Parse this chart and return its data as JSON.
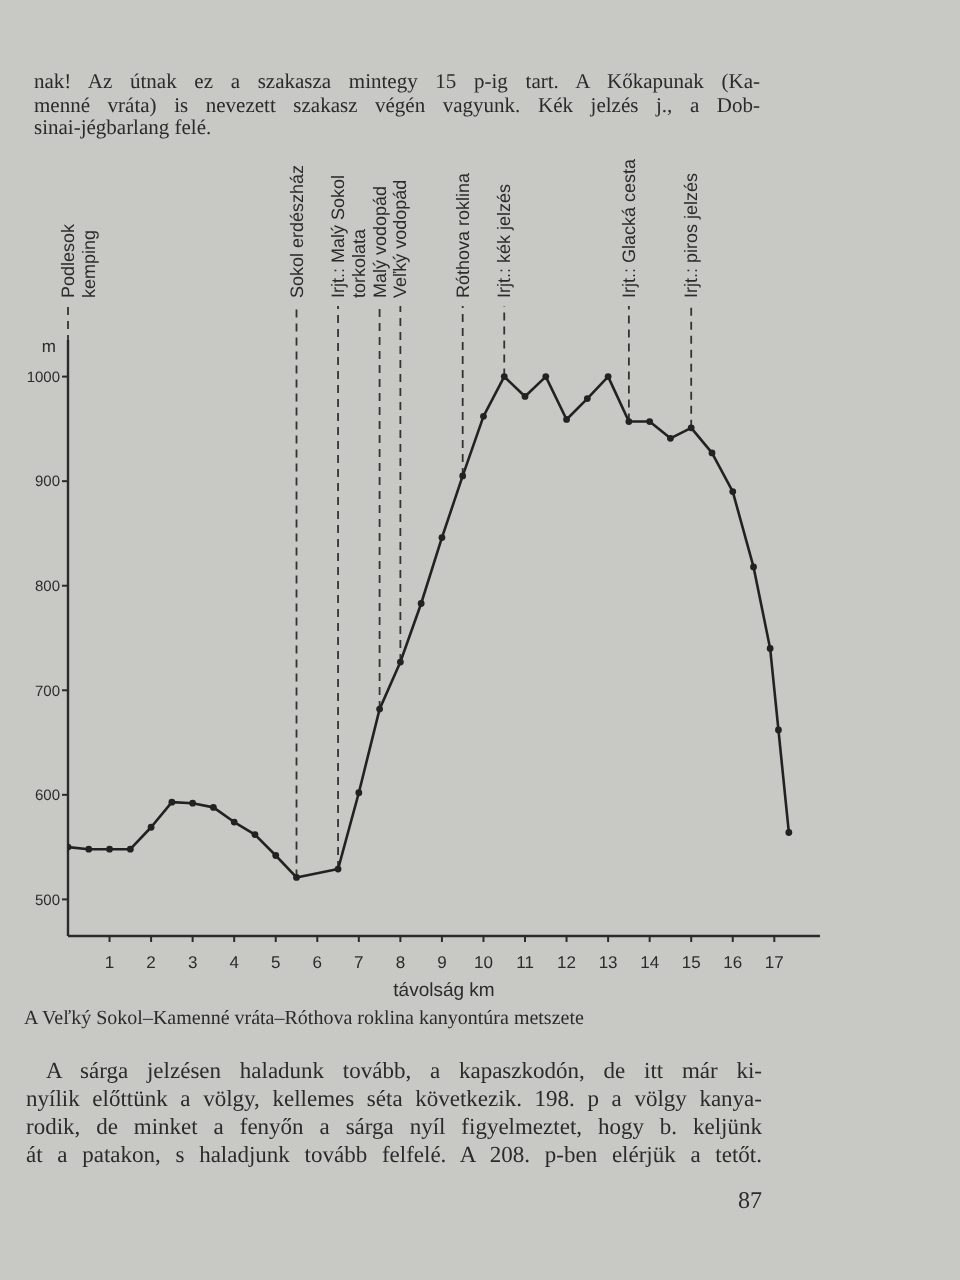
{
  "chart_data": {
    "type": "line",
    "xlabel": "távolság km",
    "ylabel": "m",
    "x": [
      0,
      0.5,
      1,
      1.5,
      2,
      2.5,
      3,
      3.5,
      4,
      4.5,
      5,
      5.5,
      6.5,
      7,
      7.5,
      8,
      8.5,
      9,
      9.5,
      10,
      10.5,
      11,
      11.5,
      12,
      12.5,
      13,
      13.5,
      14,
      14.5,
      15,
      15.5,
      16,
      16.5,
      16.9,
      17.1,
      17.35
    ],
    "values": [
      550,
      548,
      548,
      548,
      569,
      593,
      592,
      588,
      574,
      562,
      542,
      521,
      529,
      602,
      682,
      727,
      783,
      846,
      905,
      962,
      1000,
      981,
      1000,
      959,
      979,
      1000,
      957,
      957,
      941,
      951,
      927,
      890,
      818,
      740,
      662,
      564
    ],
    "color": "#222222",
    "marker": "circle",
    "line_style": "solid",
    "xlim": [
      0,
      18.1
    ],
    "xticks": [
      1,
      2,
      3,
      4,
      5,
      6,
      7,
      8,
      9,
      10,
      11,
      12,
      13,
      14,
      15,
      16,
      17
    ],
    "ylim": [
      465,
      1035
    ],
    "yticks": [
      500,
      600,
      700,
      800,
      900,
      1000
    ],
    "ref_lines": [
      {
        "axis": "x",
        "value": 0,
        "label": "Podlesok\nkemping",
        "color": "#333333",
        "line_style": "dashed"
      },
      {
        "axis": "x",
        "value": 5.5,
        "label": "Sokol erdészház",
        "color": "#333333",
        "line_style": "dashed"
      },
      {
        "axis": "x",
        "value": 6.5,
        "label": "Irjt.: Malý Sokol\ntorkolata",
        "color": "#333333",
        "line_style": "dashed"
      },
      {
        "axis": "x",
        "value": 7.5,
        "label": "Malý vodopád",
        "color": "#333333",
        "line_style": "dashed"
      },
      {
        "axis": "x",
        "value": 8,
        "label": "Veľký vodopád",
        "color": "#333333",
        "line_style": "dashed"
      },
      {
        "axis": "x",
        "value": 9.5,
        "label": "Róthova roklina",
        "color": "#333333",
        "line_style": "dashed"
      },
      {
        "axis": "x",
        "value": 10.5,
        "label": "Irjt.: kék jelzés",
        "color": "#333333",
        "line_style": "dashed"
      },
      {
        "axis": "x",
        "value": 13.5,
        "label": "Irjt.: Glacká cesta",
        "color": "#333333",
        "line_style": "dashed"
      },
      {
        "axis": "x",
        "value": 15,
        "label": "Irjt.: piros jelzés",
        "color": "#333333",
        "line_style": "dashed"
      }
    ],
    "annotations": [
      "nak! Az útnak ez a szakasza mintegy 15 p-ig tart. A Kőkapunak (Ka-\nmenné vráta) is nevezett szakasz végén vagyunk. Kék jelzés j., a Dob-\nsinai-jégbarlang felé.",
      "A Veľký Sokol–Kamenné vráta–Róthova roklina kanyontúra metszete",
      "A sárga jelzésen haladunk tovább, a kapaszkodón, de itt már ki-\nnyílik előttünk a völgy, kellemes séta következik. 198. p a völgy kanya-\nrodik, de minket a fenyőn a sárga nyíl figyelmeztet, hogy b. keljünk\nát a patakon, s haladjunk tovább felfelé. A 208. p-ben elérjük a tetőt.",
      "87"
    ]
  }
}
